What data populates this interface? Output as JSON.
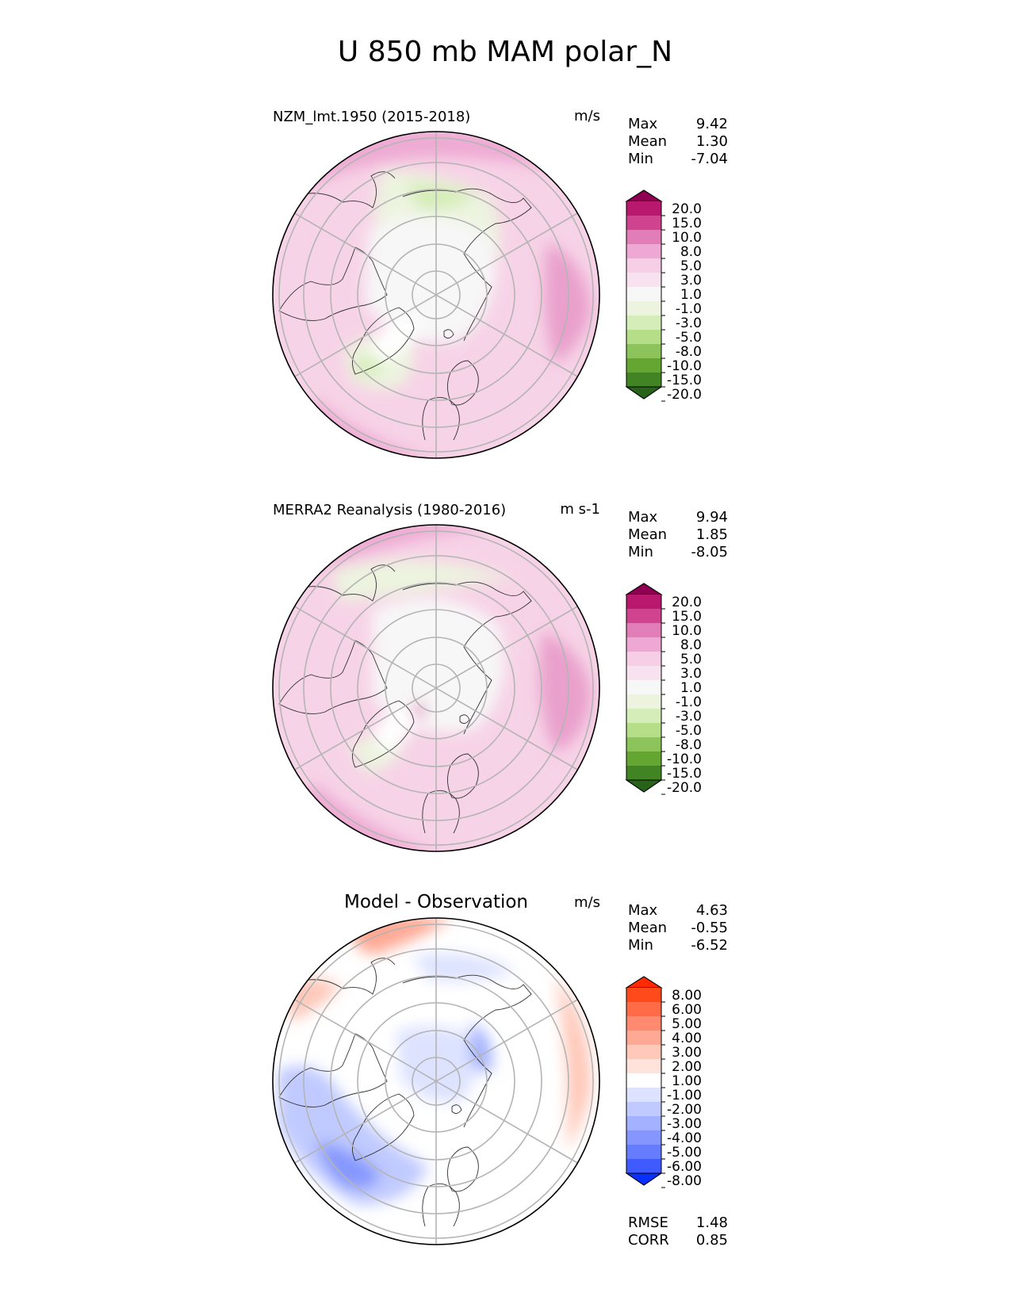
{
  "figure_title": "U 850 mb MAM polar_N",
  "chart_data": [
    {
      "type": "heatmap",
      "projection": "north-polar-stereographic",
      "title": "NZM_lmt.1950 (2015-2018)",
      "units": "m/s",
      "stats": [
        {
          "label": "Max",
          "value": "9.42"
        },
        {
          "label": "Mean",
          "value": "1.30"
        },
        {
          "label": "Min",
          "value": "-7.04"
        }
      ],
      "colorbar": {
        "extend": "both",
        "levels": [
          "20.0",
          "15.0",
          "10.0",
          "8.0",
          "5.0",
          "3.0",
          "1.0",
          "-1.0",
          "-3.0",
          "-5.0",
          "-8.0",
          "-10.0",
          "-15.0",
          "-20.0"
        ],
        "colors": [
          "#8e0152",
          "#b8186e",
          "#d0448f",
          "#e17eb8",
          "#eea8d3",
          "#f6cfe6",
          "#f9e2f0",
          "#f7f7f7",
          "#ecf4df",
          "#d5edb8",
          "#b6de88",
          "#8cc35a",
          "#65a532",
          "#428424",
          "#276419"
        ]
      },
      "features": [
        "gridlines",
        "coastlines"
      ]
    },
    {
      "type": "heatmap",
      "projection": "north-polar-stereographic",
      "title": "MERRA2 Reanalysis (1980-2016)",
      "units": "m s-1",
      "stats": [
        {
          "label": "Max",
          "value": "9.94"
        },
        {
          "label": "Mean",
          "value": "1.85"
        },
        {
          "label": "Min",
          "value": "-8.05"
        }
      ],
      "colorbar": {
        "extend": "both",
        "levels": [
          "20.0",
          "15.0",
          "10.0",
          "8.0",
          "5.0",
          "3.0",
          "1.0",
          "-1.0",
          "-3.0",
          "-5.0",
          "-8.0",
          "-10.0",
          "-15.0",
          "-20.0"
        ],
        "colors": [
          "#8e0152",
          "#b8186e",
          "#d0448f",
          "#e17eb8",
          "#eea8d3",
          "#f6cfe6",
          "#f9e2f0",
          "#f7f7f7",
          "#ecf4df",
          "#d5edb8",
          "#b6de88",
          "#8cc35a",
          "#65a532",
          "#428424",
          "#276419"
        ]
      },
      "features": [
        "gridlines",
        "coastlines"
      ]
    },
    {
      "type": "heatmap",
      "projection": "north-polar-stereographic",
      "title": "Model - Observation",
      "units": "m/s",
      "stats": [
        {
          "label": "Max",
          "value": "4.63"
        },
        {
          "label": "Mean",
          "value": "-0.55"
        },
        {
          "label": "Min",
          "value": "-6.52"
        }
      ],
      "extra_stats": [
        {
          "label": "RMSE",
          "value": "1.48"
        },
        {
          "label": "CORR",
          "value": "0.85"
        }
      ],
      "colorbar": {
        "extend": "both",
        "levels": [
          "8.00",
          "6.00",
          "5.00",
          "4.00",
          "3.00",
          "2.00",
          "1.00",
          "-1.00",
          "-2.00",
          "-3.00",
          "-4.00",
          "-5.00",
          "-6.00",
          "-8.00"
        ],
        "colors": [
          "#ff2a00",
          "#ff4a1c",
          "#ff6a47",
          "#ff8a6f",
          "#ffa994",
          "#ffc8b9",
          "#ffe3da",
          "#ffffff",
          "#dde3ff",
          "#c0caff",
          "#a3b1ff",
          "#8597ff",
          "#657cff",
          "#3f5bff",
          "#0a30ff"
        ]
      },
      "features": [
        "gridlines",
        "coastlines"
      ]
    }
  ]
}
